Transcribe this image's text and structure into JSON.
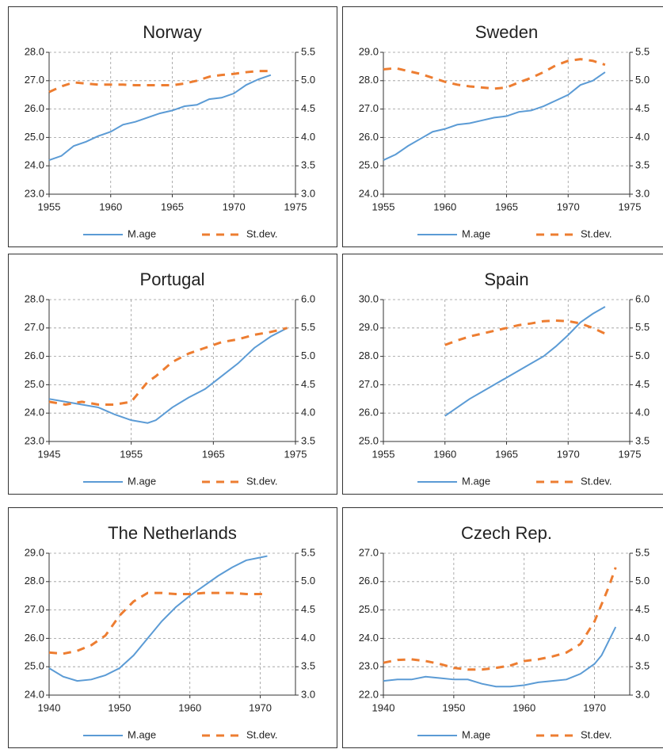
{
  "chart_data": [
    {
      "type": "line",
      "title": "Norway",
      "x": [
        1955,
        1956,
        1957,
        1958,
        1959,
        1960,
        1961,
        1962,
        1963,
        1964,
        1965,
        1966,
        1967,
        1968,
        1969,
        1970,
        1971,
        1972,
        1973
      ],
      "xlim": [
        1955,
        1975
      ],
      "xticks": [
        1955,
        1960,
        1965,
        1970,
        1975
      ],
      "ylim": [
        23,
        28
      ],
      "yticks": [
        {
          "value": 23,
          "label": "23.0"
        },
        {
          "value": 24,
          "label": "24.0"
        },
        {
          "value": 25,
          "label": "25.0"
        },
        {
          "value": 26,
          "label": "26.0"
        },
        {
          "value": 27,
          "label": "27.0"
        },
        {
          "value": 28,
          "label": "28.0"
        }
      ],
      "y2lim": [
        3,
        5.5
      ],
      "y2ticks": [
        {
          "value": 3,
          "label": "3.0"
        },
        3.5,
        {
          "value": 4,
          "label": "4.0"
        },
        4.5,
        {
          "value": 5,
          "label": "5.0"
        },
        5.5
      ],
      "grid": true,
      "series": [
        {
          "name": "M.age",
          "color": "#5b9bd5",
          "line_style": "solid",
          "values": [
            24.2,
            24.35,
            24.7,
            24.85,
            25.05,
            25.2,
            25.45,
            25.55,
            25.7,
            25.85,
            25.95,
            26.1,
            26.15,
            26.35,
            26.4,
            26.55,
            26.85,
            27.05,
            27.2
          ]
        },
        {
          "name": "St.dev.",
          "color": "#ed7d31",
          "line_style": "dashed",
          "axis": "y2",
          "values": [
            4.8,
            4.9,
            4.97,
            4.95,
            4.93,
            4.93,
            4.93,
            4.92,
            4.92,
            4.92,
            4.92,
            4.95,
            5.0,
            5.07,
            5.1,
            5.12,
            5.15,
            5.17,
            5.17
          ]
        }
      ]
    },
    {
      "type": "line",
      "title": "Sweden",
      "x": [
        1955,
        1956,
        1957,
        1958,
        1959,
        1960,
        1961,
        1962,
        1963,
        1964,
        1965,
        1966,
        1967,
        1968,
        1969,
        1970,
        1971,
        1972,
        1973
      ],
      "xlim": [
        1955,
        1975
      ],
      "xticks": [
        1955,
        1960,
        1965,
        1970,
        1975
      ],
      "ylim": [
        24,
        29
      ],
      "yticks": [
        {
          "value": 24,
          "label": "24.0"
        },
        {
          "value": 25,
          "label": "25.0"
        },
        {
          "value": 26,
          "label": "26.0"
        },
        {
          "value": 27,
          "label": "27.0"
        },
        {
          "value": 28,
          "label": "28.0"
        },
        {
          "value": 29,
          "label": "29.0"
        }
      ],
      "y2lim": [
        3,
        5.5
      ],
      "y2ticks": [
        {
          "value": 3,
          "label": "3.0"
        },
        3.5,
        {
          "value": 4,
          "label": "4.0"
        },
        4.5,
        {
          "value": 5,
          "label": "5.0"
        },
        5.5
      ],
      "grid": true,
      "series": [
        {
          "name": "M.age",
          "color": "#5b9bd5",
          "line_style": "solid",
          "values": [
            25.2,
            25.4,
            25.7,
            25.95,
            26.2,
            26.3,
            26.45,
            26.5,
            26.6,
            26.7,
            26.75,
            26.9,
            26.95,
            27.1,
            27.3,
            27.5,
            27.85,
            28.0,
            28.3
          ]
        },
        {
          "name": "St.dev.",
          "color": "#ed7d31",
          "line_style": "dashed",
          "axis": "y2",
          "values": [
            5.2,
            5.22,
            5.17,
            5.12,
            5.05,
            4.98,
            4.93,
            4.9,
            4.88,
            4.86,
            4.88,
            4.97,
            5.05,
            5.15,
            5.27,
            5.35,
            5.38,
            5.35,
            5.28
          ]
        }
      ]
    },
    {
      "type": "line",
      "title": "Portugal",
      "x": [
        1945,
        1947,
        1949,
        1951,
        1953,
        1955,
        1957,
        1958,
        1960,
        1962,
        1964,
        1966,
        1968,
        1970,
        1972,
        1974
      ],
      "xlim": [
        1945,
        1975
      ],
      "xticks": [
        1945,
        1955,
        1965,
        1975
      ],
      "ylim": [
        23,
        28
      ],
      "yticks": [
        {
          "value": 23,
          "label": "23.0"
        },
        {
          "value": 24,
          "label": "24.0"
        },
        {
          "value": 25,
          "label": "25.0"
        },
        {
          "value": 26,
          "label": "26.0"
        },
        {
          "value": 27,
          "label": "27.0"
        },
        {
          "value": 28,
          "label": "28.0"
        }
      ],
      "y2lim": [
        3.5,
        6
      ],
      "y2ticks": [
        3.5,
        {
          "value": 4,
          "label": "4.0"
        },
        4.5,
        {
          "value": 5,
          "label": "5.0"
        },
        5.5,
        {
          "value": 6,
          "label": "6.0"
        }
      ],
      "grid": true,
      "series": [
        {
          "name": "M.age",
          "color": "#5b9bd5",
          "line_style": "solid",
          "values": [
            24.5,
            24.4,
            24.3,
            24.2,
            23.95,
            23.75,
            23.65,
            23.75,
            24.2,
            24.55,
            24.85,
            25.3,
            25.75,
            26.3,
            26.7,
            27.0
          ]
        },
        {
          "name": "St.dev.",
          "color": "#ed7d31",
          "line_style": "dashed",
          "axis": "y2",
          "values": [
            4.2,
            4.15,
            4.2,
            4.15,
            4.15,
            4.2,
            4.55,
            4.65,
            4.9,
            5.05,
            5.15,
            5.25,
            5.3,
            5.38,
            5.43,
            5.5
          ]
        }
      ]
    },
    {
      "type": "line",
      "title": "Spain",
      "x": [
        1960,
        1961,
        1962,
        1963,
        1964,
        1965,
        1966,
        1967,
        1968,
        1969,
        1970,
        1971,
        1972,
        1973
      ],
      "xlim": [
        1955,
        1975
      ],
      "xticks": [
        1955,
        1960,
        1965,
        1970,
        1975
      ],
      "ylim": [
        25,
        30
      ],
      "yticks": [
        {
          "value": 25,
          "label": "25.0"
        },
        {
          "value": 26,
          "label": "26.0"
        },
        {
          "value": 27,
          "label": "27.0"
        },
        {
          "value": 28,
          "label": "28.0"
        },
        {
          "value": 29,
          "label": "29.0"
        },
        {
          "value": 30,
          "label": "30.0"
        }
      ],
      "y2lim": [
        3.5,
        6
      ],
      "y2ticks": [
        3.5,
        {
          "value": 4,
          "label": "4.0"
        },
        4.5,
        {
          "value": 5,
          "label": "5.0"
        },
        5.5,
        {
          "value": 6,
          "label": "6.0"
        }
      ],
      "grid": true,
      "series": [
        {
          "name": "M.age",
          "color": "#5b9bd5",
          "line_style": "solid",
          "values": [
            25.9,
            26.2,
            26.5,
            26.75,
            27.0,
            27.25,
            27.5,
            27.75,
            28.0,
            28.35,
            28.75,
            29.2,
            29.5,
            29.75
          ]
        },
        {
          "name": "St.dev.",
          "color": "#ed7d31",
          "line_style": "dashed",
          "axis": "y2",
          "values": [
            5.2,
            5.28,
            5.35,
            5.4,
            5.45,
            5.5,
            5.55,
            5.58,
            5.62,
            5.63,
            5.62,
            5.58,
            5.5,
            5.4
          ]
        }
      ]
    },
    {
      "type": "line",
      "title": "The Netherlands",
      "x": [
        1940,
        1942,
        1944,
        1946,
        1948,
        1950,
        1952,
        1954,
        1956,
        1958,
        1960,
        1962,
        1964,
        1966,
        1968,
        1970,
        1971
      ],
      "xlim": [
        1940,
        1975
      ],
      "xticks": [
        1940,
        1950,
        1960,
        1970
      ],
      "ylim": [
        24,
        29
      ],
      "yticks": [
        {
          "value": 24,
          "label": "24.0"
        },
        {
          "value": 25,
          "label": "25.0"
        },
        {
          "value": 26,
          "label": "26.0"
        },
        {
          "value": 27,
          "label": "27.0"
        },
        {
          "value": 28,
          "label": "28.0"
        },
        {
          "value": 29,
          "label": "29.0"
        }
      ],
      "y2lim": [
        3,
        5.5
      ],
      "y2ticks": [
        {
          "value": 3,
          "label": "3.0"
        },
        3.5,
        {
          "value": 4,
          "label": "4.0"
        },
        4.5,
        {
          "value": 5,
          "label": "5.0"
        },
        5.5
      ],
      "grid": true,
      "series": [
        {
          "name": "M.age",
          "color": "#5b9bd5",
          "line_style": "solid",
          "values": [
            24.95,
            24.65,
            24.5,
            24.55,
            24.7,
            24.95,
            25.4,
            26.0,
            26.6,
            27.1,
            27.5,
            27.85,
            28.2,
            28.5,
            28.75,
            28.85,
            28.9
          ]
        },
        {
          "name": "St.dev.",
          "color": "#ed7d31",
          "line_style": "dashed",
          "axis": "y2",
          "values": [
            3.75,
            3.73,
            3.78,
            3.88,
            4.05,
            4.4,
            4.65,
            4.8,
            4.8,
            4.78,
            4.78,
            4.8,
            4.8,
            4.8,
            4.78,
            4.78,
            4.78
          ]
        }
      ]
    },
    {
      "type": "line",
      "title": "Czech Rep.",
      "x": [
        1940,
        1942,
        1944,
        1946,
        1948,
        1950,
        1952,
        1954,
        1956,
        1958,
        1960,
        1962,
        1964,
        1966,
        1968,
        1970,
        1971,
        1972,
        1973
      ],
      "xlim": [
        1940,
        1975
      ],
      "xticks": [
        1940,
        1950,
        1960,
        1970
      ],
      "ylim": [
        22,
        27
      ],
      "yticks": [
        {
          "value": 22,
          "label": "22.0"
        },
        {
          "value": 23,
          "label": "23.0"
        },
        {
          "value": 24,
          "label": "24.0"
        },
        {
          "value": 25,
          "label": "25.0"
        },
        {
          "value": 26,
          "label": "26.0"
        },
        {
          "value": 27,
          "label": "27.0"
        }
      ],
      "y2lim": [
        3,
        5.5
      ],
      "y2ticks": [
        {
          "value": 3,
          "label": "3.0"
        },
        3.5,
        {
          "value": 4,
          "label": "4.0"
        },
        4.5,
        {
          "value": 5,
          "label": "5.0"
        },
        5.5
      ],
      "grid": true,
      "series": [
        {
          "name": "M.age",
          "color": "#5b9bd5",
          "line_style": "solid",
          "values": [
            22.5,
            22.55,
            22.55,
            22.65,
            22.6,
            22.55,
            22.55,
            22.4,
            22.3,
            22.3,
            22.35,
            22.45,
            22.5,
            22.55,
            22.75,
            23.1,
            23.4,
            23.9,
            24.4
          ]
        },
        {
          "name": "St.dev.",
          "color": "#ed7d31",
          "line_style": "dashed",
          "axis": "y2",
          "values": [
            3.57,
            3.62,
            3.63,
            3.6,
            3.55,
            3.48,
            3.45,
            3.45,
            3.48,
            3.52,
            3.6,
            3.63,
            3.68,
            3.75,
            3.9,
            4.3,
            4.6,
            4.9,
            5.25
          ]
        }
      ]
    }
  ]
}
